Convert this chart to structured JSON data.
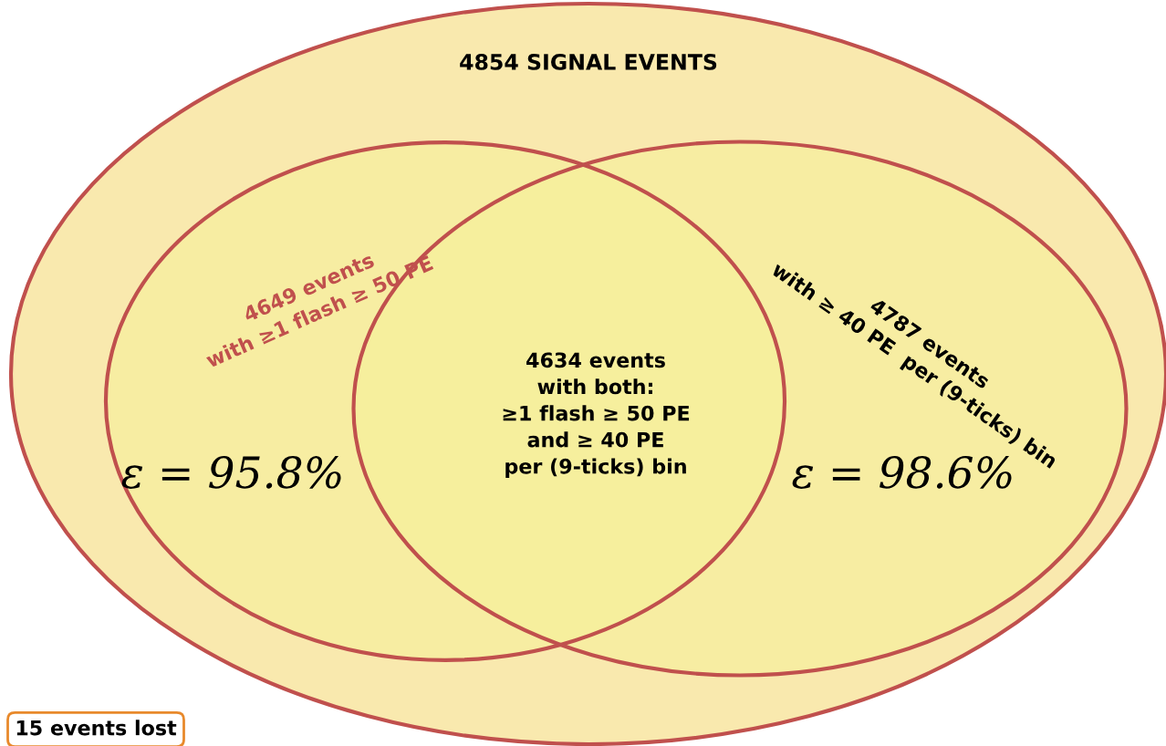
{
  "chart_data": {
    "type": "other",
    "title": "4854 SIGNAL EVENTS",
    "categories": [
      "with ≥1 flash ≥ 50 PE",
      "with ≥ 40 PE  per (9-ticks) bin",
      "with both:\n≥1 flash ≥ 50 PE\nand ≥ 40 PE\nper (9-ticks) bin"
    ],
    "values": [
      4649,
      4787,
      4634
    ],
    "value_labels": [
      "4649 events",
      "4787 events",
      "4634 events"
    ],
    "colors": [
      "#f5f09a",
      "#f5f09a",
      "#f0f08a"
    ],
    "annotations": [
      "ε = 95.8%",
      "ε = 98.6%",
      "15 events lost"
    ]
  }
}
